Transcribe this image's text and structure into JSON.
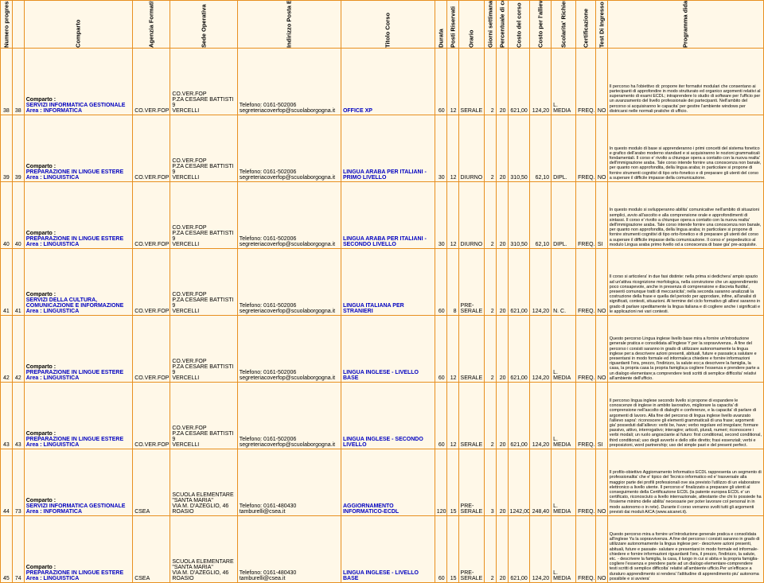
{
  "headers": [
    "Numero progressivo del corso",
    "",
    "Comparto",
    "Agenzia Formativa",
    "Sede Operativa",
    "Indirizzo Posta Elettronica E Telefono",
    "Titolo Corso",
    "Durata",
    "Posti Riservati",
    "Orario",
    "Giorni settimanali di impegno",
    "Percentuale di cofinanziamento",
    "Costo del corso",
    "Costo per l'allievo",
    "Scolarita' Richiesta",
    "Certificazione",
    "Test Di Ingresso",
    "Programma didattico"
  ],
  "rows": [
    {
      "n1": "38",
      "n2": "38",
      "comp": "Comparto :\nSERVIZI INFORMATICA GESTIONALE\nArea : INFORMATICA",
      "ag": "CO.VER.FOP",
      "sede": "CO.VER.FOP\nP.ZA CESARE BATTISTI 9\nVERCELLI",
      "ind": "Telefono: 0161-502006\nsegreteriacoverfop@scuolaborgogna.it",
      "tit": "OFFICE XP",
      "dur": "60",
      "posti": "12",
      "orario": "SERALE",
      "gg": "2",
      "perc": "20",
      "c1": "621,00",
      "c2": "124,20",
      "sc": "L. MEDIA",
      "cert": "FREQ.",
      "test": "NO",
      "desc": "Il percorso ha l'obiettivo di: proporre iter formativi modulari che consentano ai partecipanti di approfondire in modo strutturato ed organico argomenti relativi al superamento di esami ECDL; intraprendere lo studio di software per l'ufficio per un avanzamento del livello professionale dei partecipanti. Nell'ambito del percorso si acquisiranno le capacita' per gestire l'ambiente windows per districarsi nelle normali pratiche di ufficio."
    },
    {
      "n1": "39",
      "n2": "39",
      "comp": "Comparto :\nPREPARAZIONE IN LINGUE ESTERE\nArea : LINGUISTICA",
      "ag": "CO.VER.FOP",
      "sede": "CO.VER.FOP\nP.ZA CESARE BATTISTI 9\nVERCELLI",
      "ind": "Telefono: 0161-502006\nsegreteriacoverfop@scuolaborgogna.it",
      "tit": "LINGUA ARABA PER ITALIANI - PRIMO LIVELLO",
      "dur": "30",
      "posti": "12",
      "orario": "DIURNO",
      "gg": "2",
      "perc": "20",
      "c1": "310,50",
      "c2": "62,10",
      "sc": "DIPL.",
      "cert": "FREQ.",
      "test": "NO",
      "desc": "In questo modulo di base si apprenderanno i primi concetti del sistema fonetico e grafico dell'arabo moderno standard e si acquisiranno le nozioni grammaticali fondamentali. Il corso e' rivolto a chiunque opera a contatto con la nuova realta' dell'immigrazione araba. Tale corso intende fornire una conoscenza non banale, per quanto non approfondita, della lingua araba; in particolare si propone di fornire strumenti cognitivi di tipo orto-fonetico e di preparare gli utenti del corso a superare il difficile impasse della comunicazione."
    },
    {
      "n1": "40",
      "n2": "40",
      "comp": "Comparto :\nPREPARAZIONE IN LINGUE ESTERE\nArea : LINGUISTICA",
      "ag": "CO.VER.FOP",
      "sede": "CO.VER.FOP\nP.ZA CESARE BATTISTI 9\nVERCELLI",
      "ind": "Telefono: 0161-502006\nsegreteriacoverfop@scuolaborgogna.it",
      "tit": "LINGUA ARABA PER ITALIANI - SECONDO LIVELLO",
      "dur": "30",
      "posti": "12",
      "orario": "DIURNO",
      "gg": "2",
      "perc": "20",
      "c1": "310,50",
      "c2": "62,10",
      "sc": "DIPL.",
      "cert": "FREQ.",
      "test": "SI",
      "desc": "In questo modulo si svilupperanno abilita' comunicative nell'ambito di situazioni semplici, avvio all'ascolto e alla comprensione orale e approfondimenti di sintassi. Il corso e' rivolto a chiunque opera a contatto con la nuova realta' dell'immigrazione araba. Tale corso intende fornire una conoscenza non banale, per quanto non approfondita, della lingua araba; in particolare si propone di fornire strumenti cognitivi di tipo orto-fonetico e di preparare gli utenti del corso a superare il difficile impasse della comunicazione. Il corso e' propedeutico al modulo Lingua araba primo livello od a conoscenza di base gia' pre-acquisite."
    },
    {
      "n1": "41",
      "n2": "41",
      "comp": "Comparto :\nSERVIZI DELLA CULTURA, COMUNICAZIONE E INFORMAZIONE\nArea : LINGUISTICA",
      "ag": "CO.VER.FOP",
      "sede": "CO.VER.FOP\nP.ZA CESARE BATTISTI 9\nVERCELLI",
      "ind": "Telefono: 0161-502006\nsegreteriacoverfop@scuolaborgogna.it",
      "tit": "LINGUA ITALIANA PER STRANIERI",
      "dur": "60",
      "posti": "8",
      "orario": "PRE-SERALE",
      "gg": "2",
      "perc": "20",
      "c1": "621,00",
      "c2": "124,20",
      "sc": "N. C.",
      "cert": "FREQ.",
      "test": "NO",
      "desc": "Il corso si articolera' in due fasi distinte: nella prima si dedichera' ampio spazio ad un'attiva ricognizione morfologica, nella convinzione che un apprendimento poco consapevole, anche in presenza di comprensione e discreta fluidita', presenti comunque tratti di meccanicita'; nella seconda saranno analizzati la costruzione della frase e quella del periodo per approdare, infine, all'analisi di significati, contesti, situazioni. Al termine del ciclo formativo gli allievi saranno in grado di parlare speditamente la lingua italiana e di cogliere anche i significati e le applicazioni nei vari contesti."
    },
    {
      "n1": "42",
      "n2": "42",
      "comp": "Comparto :\nPREPARAZIONE IN LINGUE ESTERE\nArea : LINGUISTICA",
      "ag": "CO.VER.FOP",
      "sede": "CO.VER.FOP\nP.ZA CESARE BATTISTI 9\nVERCELLI",
      "ind": "Telefono: 0161-502006\nsegreteriacoverfop@scuolaborgogna.it",
      "tit": "LINGUA INGLESE - LIVELLO BASE",
      "dur": "60",
      "posti": "12",
      "orario": "SERALE",
      "gg": "2",
      "perc": "20",
      "c1": "621,00",
      "c2": "124,20",
      "sc": "L. MEDIA",
      "cert": "FREQ.",
      "test": "NO",
      "desc": "Questo percorso Lingua inglese livello base mira a fornire un'introduzione generale pratica e consolidata all'inglese Y per la sopravvivenza.. A fine del percorso i corsisti saranno in grado di utilizzare autonomamente la lingua inglese per:a descrivere azioni presenti, abituali, future e passate;a salutare e presentarsi in modo formale ed informale;a chiedere e fornire informazioni riguardanti l'ora, prezzo, l'indirizzo, la salute ecc;a descrivere la famiglia, la casa, la propria casa la propria famiglia;a cogliere l'essenza e prendere parte a un dialogo elementare;a comprendere testi scritti di semplice difficolta' relativi all'ambiente dell'ufficio."
    },
    {
      "n1": "43",
      "n2": "43",
      "comp": "Comparto :\nPREPARAZIONE IN LINGUE ESTERE\nArea : LINGUISTICA",
      "ag": "CO.VER.FOP",
      "sede": "CO.VER.FOP\nP.ZA CESARE BATTISTI 9\nVERCELLI",
      "ind": "Telefono: 0161-502006\nsegreteriacoverfop@scuolaborgogna.it",
      "tit": "LINGUA INGLESE - SECONDO LIVELLO",
      "dur": "60",
      "posti": "12",
      "orario": "SERALE",
      "gg": "2",
      "perc": "20",
      "c1": "621,00",
      "c2": "124,20",
      "sc": "L. MEDIA",
      "cert": "FREQ.",
      "test": "SI",
      "desc": "Il percorso lingua inglese secondo livello si propone di espandere le conoscenze di inglese in ambito lavorativo, migliorare la capacita' di comprensione nell'ascolto di dialoghi e conferenze, e la capacita' di parlare di argomenti di lavoro. Alla fine del percorso di lingua inglese livello avanzato l'allievo sapra': riconoscere gli elementi grammaticali di una frase; argomenti gia' posseduti dall'allievo: verbi be, have; verbo regolare ed irregolare; formare passivo, attivo, interrogativo; interagire; articoli, plurali, numeri; riconoscere i verbi modali; un ruolo angosciante al futuro: first conditional, second conditional, third conditional; uso degli avverbi e dello stile diretto; frasi essenziali; verbi e preposizioni, word partnership; uso del simple past e del present perfect."
    },
    {
      "n1": "44",
      "n2": "73",
      "comp": "Comparto :\nSERVIZI INFORMATICA GESTIONALE\nArea : INFORMATICA",
      "ag": "CSEA",
      "sede": "SCUOLA ELEMENTARE \"SANTA MARIA\"\nVIA M. D'AZEGLIO, 46\nROASIO",
      "ind": "Telefono: 0161-480430\ntamburelli@csea.it",
      "tit": "AGGIORNAMENTO INFORMATICO-ECDL",
      "dur": "120",
      "posti": "15",
      "orario": "PRE-SERALE",
      "gg": "3",
      "perc": "20",
      "c1": "1242,00",
      "c2": "248,40",
      "sc": "L. MEDIA",
      "cert": "FREQ.",
      "test": "NO",
      "desc": "Il profilo-obiettivo Aggiornamento Informatico ECDL rappresenta un segmento di professionalita' che e' tipico del Tecnico informatico ed e' trasversale alla maggior parte dei profili professionali ove sia previsto l'utilizzo di un elaboratore elettronico a livello utente. Il percorso e' finalizzato a preparare gli utenti al conseguimento della Certificazione ECDL (la patente europea ECDL e' un certificato, riconosciuto a livello internazionale, attestante che chi lo possiede ha l'insieme minimo delle abilita' necessarie per poter lavorare col personal in in modo autonomo o in rete). Durante il corso verranno svolti tutti gli argomenti previsti dai moduli AICA (www.aicanet.it)."
    },
    {
      "n1": "45",
      "n2": "74",
      "comp": "Comparto :\nPREPARAZIONE IN LINGUE ESTERE\nArea : LINGUISTICA",
      "ag": "CSEA",
      "sede": "SCUOLA ELEMENTARE \"SANTA MARIA\"\nVIA M. D'AZEGLIO, 46\nROASIO",
      "ind": "Telefono: 0161-480430\ntamburelli@csea.it",
      "tit": "LINGUA INGLESE - LIVELLO BASE",
      "dur": "60",
      "posti": "15",
      "orario": "PRE-SERALE",
      "gg": "2",
      "perc": "20",
      "c1": "621,00",
      "c2": "124,20",
      "sc": "L. MEDIA",
      "cert": "FREQ.",
      "test": "NO",
      "desc": "Questo percorso mira a fornire un'introduzione generale pratica e consolidata all'inglese Ya la sopravvivenza. A fine del percorso i corsisti saranno in grado di utilizzare autonomamente la lingua inglese per:- descrivere azioni presenti, abituali, future e passate- salutare e presentarsi in modo formale ed informale- chiedere e fornire informazioni riguardanti l'ora, il prezzo, l'indirizzo, la salute, etc. - descrivere la famiglia, la casa, il luogo in cui si abita e la propria famiglia- cogliere l'essenza e prendere parte ad un dialogo elementare-comprendere testi scritti di semplice difficolta' relativi all'ambiente ufficio.Per un'efficace a duraturo apprendimento si rendera' l'attitudine di apprendimento piu' autonoma possibile e si avviera'"
    }
  ]
}
